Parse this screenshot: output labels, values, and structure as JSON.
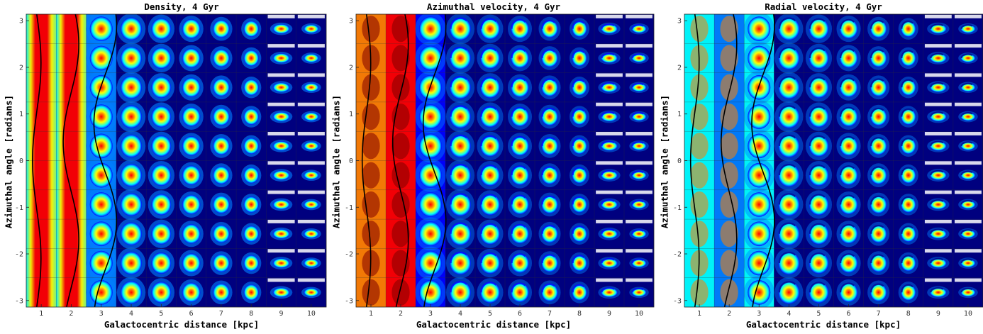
{
  "chart_data": [
    {
      "type": "heatmap",
      "title": "Density, 4 Gyr",
      "quantity": "density",
      "xlabel": "Galactocentric distance [kpc]",
      "ylabel": "Azimuthal angle [radians]",
      "x_ticks": [
        1,
        2,
        3,
        4,
        5,
        6,
        7,
        8,
        9,
        10
      ],
      "y_ticks": [
        3,
        2,
        1,
        0,
        -1,
        -2,
        -3
      ],
      "xlim": [
        0.5,
        10.5
      ],
      "ylim": [
        -3.14,
        3.14
      ],
      "grid": {
        "radial_bins": 10,
        "azimuthal_bins": 10
      },
      "overlay_curves": 3,
      "colormap": [
        "#00007f",
        "#0000ff",
        "#007fff",
        "#00ffff",
        "#7fff7f",
        "#ffff00",
        "#ff7f00",
        "#ff0000",
        "#7f0000"
      ]
    },
    {
      "type": "heatmap",
      "title": "Azimuthal velocity, 4 Gyr",
      "quantity": "azimuthal_velocity",
      "xlabel": "Galactocentric distance [kpc]",
      "ylabel": "Azimuthal angle [radians]",
      "x_ticks": [
        1,
        2,
        3,
        4,
        5,
        6,
        7,
        8,
        9,
        10
      ],
      "y_ticks": [
        3,
        2,
        1,
        0,
        -1,
        -2,
        -3
      ],
      "xlim": [
        0.5,
        10.5
      ],
      "ylim": [
        -3.14,
        3.14
      ],
      "grid": {
        "radial_bins": 10,
        "azimuthal_bins": 10
      },
      "overlay_curves": 3,
      "colormap": [
        "#00007f",
        "#0000ff",
        "#007fff",
        "#00ffff",
        "#7fff7f",
        "#ffff00",
        "#ff7f00",
        "#ff0000",
        "#7f0000"
      ]
    },
    {
      "type": "heatmap",
      "title": "Radial velocity, 4 Gyr",
      "quantity": "radial_velocity",
      "xlabel": "Galactocentric distance [kpc]",
      "ylabel": "Azimuthal angle [radians]",
      "x_ticks": [
        1,
        2,
        3,
        4,
        5,
        6,
        7,
        8,
        9,
        10
      ],
      "y_ticks": [
        3,
        2,
        1,
        0,
        -1,
        -2,
        -3
      ],
      "xlim": [
        0.5,
        10.5
      ],
      "ylim": [
        -3.14,
        3.14
      ],
      "grid": {
        "radial_bins": 10,
        "azimuthal_bins": 10
      },
      "overlay_curves": 3,
      "colormap": [
        "#00007f",
        "#0000ff",
        "#007fff",
        "#00ffff",
        "#7fff7f",
        "#ffff00",
        "#ff7f00",
        "#ff0000",
        "#7f0000"
      ]
    }
  ]
}
